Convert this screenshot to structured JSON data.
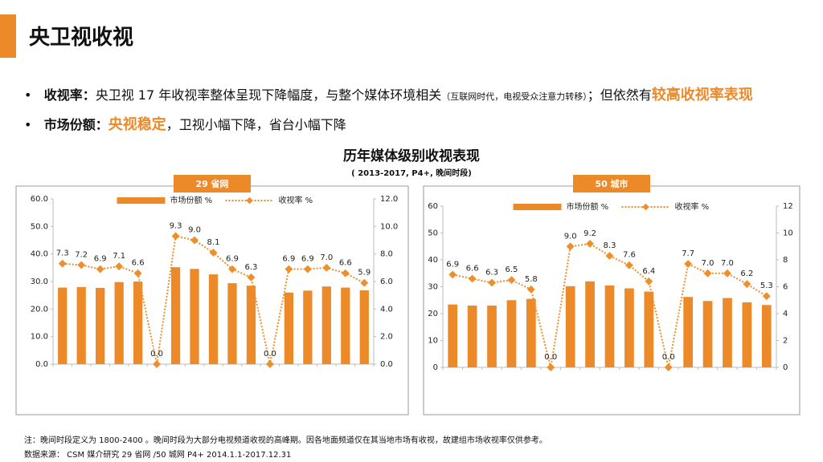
{
  "header": {
    "title": "央卫视收视"
  },
  "bullets": [
    {
      "label": "收视率：",
      "text": "央卫视 17 年收视率整体呈现下降幅度，与整个媒体环境相关",
      "note": "（互联网时代，电视受众注意力转移）",
      "text2": "；但依然有",
      "highlight": "较高收视率表现"
    },
    {
      "label": "市场份额：",
      "highlight": "央视稳定",
      "text": "，卫视小幅下降，省台小幅下降"
    }
  ],
  "section": {
    "title": "历年媒体级别收视表现",
    "subtitle": "( 2013-2017, P4+, 晚间时段)"
  },
  "chart_data": [
    {
      "type": "combo",
      "label": "29 省网",
      "categories": [
        null,
        null,
        null,
        null,
        null,
        null,
        null,
        null,
        null,
        null,
        null,
        null,
        null,
        null,
        null,
        null,
        null
      ],
      "series": [
        {
          "name": "市场份额 %",
          "type": "bar",
          "color": "#ec8a2a",
          "values": [
            27.8,
            28,
            27.7,
            29.8,
            30,
            null,
            35.2,
            34.6,
            32.6,
            29.4,
            28.5,
            null,
            26,
            26.7,
            28.2,
            27.8,
            26.8
          ]
        },
        {
          "name": "收视率 %",
          "type": "line",
          "axis": "y2",
          "color": "#ee8f2c",
          "values": [
            7.3,
            7.2,
            6.9,
            7.1,
            6.6,
            0,
            9.3,
            9.0,
            8.1,
            6.9,
            6.3,
            0,
            6.9,
            6.9,
            7.0,
            6.6,
            5.9
          ],
          "value_labels": [
            "7.3",
            "7.2",
            "6.9",
            "7.1",
            "6.6",
            "0.0",
            "9.3",
            "9.0",
            "8.1",
            "6.9",
            "6.3",
            "0.0",
            "6.9",
            "6.9",
            "7.0",
            "6.6",
            "5.9"
          ]
        }
      ],
      "ylim": [
        0,
        60
      ],
      "yticks": [
        {
          "value": 0,
          "label": "0.0"
        },
        {
          "value": 10,
          "label": "10.0"
        },
        {
          "value": 20,
          "label": "20.0"
        },
        {
          "value": 30,
          "label": "30.0"
        },
        {
          "value": 40,
          "label": "40.0"
        },
        {
          "value": 50,
          "label": "50.0"
        },
        {
          "value": 60,
          "label": "60.0"
        }
      ],
      "y2lim": [
        0,
        12
      ],
      "y2ticks": [
        {
          "value": 0,
          "label": "0.0"
        },
        {
          "value": 2,
          "label": "2.0"
        },
        {
          "value": 4,
          "label": "4.0"
        },
        {
          "value": 6,
          "label": "6.0"
        },
        {
          "value": 8,
          "label": "8.0"
        },
        {
          "value": 10,
          "label": "10.0"
        },
        {
          "value": 12,
          "label": "12.0"
        }
      ],
      "legend": "top"
    },
    {
      "type": "combo",
      "label": "50 城市",
      "categories": [
        null,
        null,
        null,
        null,
        null,
        null,
        null,
        null,
        null,
        null,
        null,
        null,
        null,
        null,
        null,
        null,
        null
      ],
      "series": [
        {
          "name": "市场份额 %",
          "type": "bar",
          "color": "#ec8a2a",
          "values": [
            23.4,
            23,
            23,
            25,
            25.5,
            null,
            30.2,
            32,
            30.5,
            29.4,
            28.2,
            null,
            26.2,
            24.7,
            25.8,
            24.2,
            23.2
          ]
        },
        {
          "name": "收视率 %",
          "type": "line",
          "axis": "y2",
          "color": "#ee8f2c",
          "values": [
            6.9,
            6.6,
            6.3,
            6.5,
            5.8,
            0,
            9.0,
            9.2,
            8.3,
            7.6,
            6.4,
            0,
            7.7,
            7.0,
            7.0,
            6.2,
            5.3
          ],
          "value_labels": [
            "6.9",
            "6.6",
            "6.3",
            "6.5",
            "5.8",
            "0.0",
            "9.0",
            "9.2",
            "8.3",
            "7.6",
            "6.4",
            "0.0",
            "7.7",
            "7.0",
            "7.0",
            "6.2",
            "5.3"
          ]
        }
      ],
      "ylim": [
        0,
        60
      ],
      "yticks": [
        0,
        10,
        20,
        30,
        40,
        50,
        60
      ],
      "y2lim": [
        0,
        12
      ],
      "y2ticks": [
        0,
        2,
        4,
        6,
        8,
        10,
        12
      ],
      "legend": "top"
    }
  ],
  "footer": {
    "note": "注：晚间时段定义为 1800-2400 。晚间时段为大部分电视频道收视的高峰期。因各地面频道仅在其当地市场有收视，故建组市场收视率仅供参考。",
    "source": "数据来源： CSM 媒介研究 29 省网 /50 城网 P4+ 2014.1.1-2017.12.31"
  }
}
